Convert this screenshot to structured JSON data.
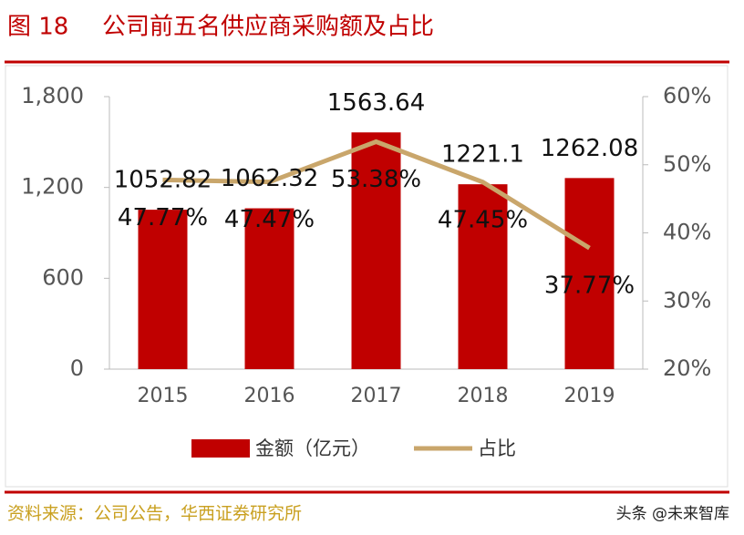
{
  "chart_data": {
    "type": "bar-line",
    "figure_label": "图 18",
    "title": "公司前五名供应商采购额及占比",
    "categories": [
      "2015",
      "2016",
      "2017",
      "2018",
      "2019"
    ],
    "series": [
      {
        "name": "金额（亿元）",
        "type": "bar",
        "color": "#c00000",
        "values": [
          1052.82,
          1062.32,
          1563.64,
          1221.1,
          1262.08
        ]
      },
      {
        "name": "占比",
        "type": "line",
        "axis": "y2",
        "color": "#c9a66b",
        "values": [
          47.77,
          47.47,
          53.38,
          47.45,
          37.77
        ],
        "value_labels": [
          "47.77%",
          "47.47%",
          "53.38%",
          "47.45%",
          "37.77%"
        ]
      }
    ],
    "ylim": [
      0,
      1800
    ],
    "yticks": [
      0,
      600,
      {
        "value": 1200,
        "label": "1,200"
      },
      {
        "value": 1800,
        "label": "1,800"
      }
    ],
    "y2lim": [
      20,
      60
    ],
    "y2ticks": [
      {
        "value": 20,
        "label": "20%"
      },
      {
        "value": 30,
        "label": "30%"
      },
      {
        "value": 40,
        "label": "40%"
      },
      {
        "value": 50,
        "label": "50%"
      },
      {
        "value": 60,
        "label": "60%"
      }
    ],
    "legend": "bottom",
    "source": "资料来源：公司公告，华西证券研究所",
    "watermark": "头条 @未来智库"
  }
}
